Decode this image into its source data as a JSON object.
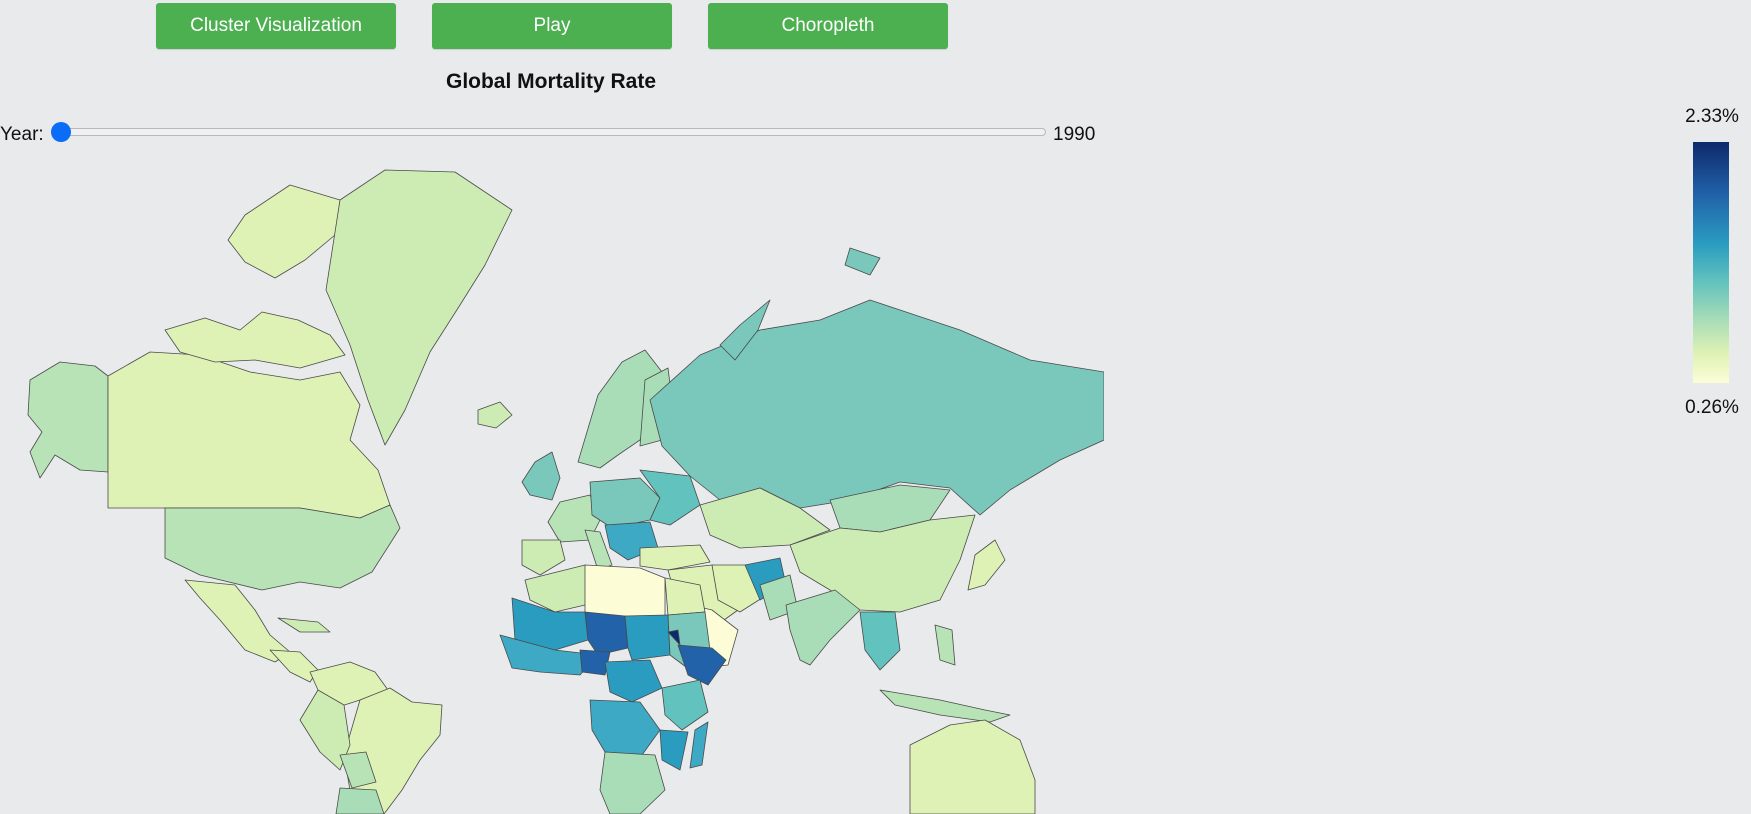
{
  "buttons": {
    "cluster": "Cluster Visualization",
    "play": "Play",
    "choropleth": "Choropleth"
  },
  "title": "Global Mortality Rate",
  "slider": {
    "label": "Year:",
    "value": "1990",
    "position_fraction": 0
  },
  "legend": {
    "max": "2.33%",
    "min": "0.26%"
  },
  "colors": {
    "button": "#4caf50",
    "background": "#e9eaec",
    "slider_thumb": "#0a6cf7",
    "scale_low": "#fcfdd7",
    "scale_mid": "#62c2bd",
    "scale_high": "#0e2a6c"
  }
}
